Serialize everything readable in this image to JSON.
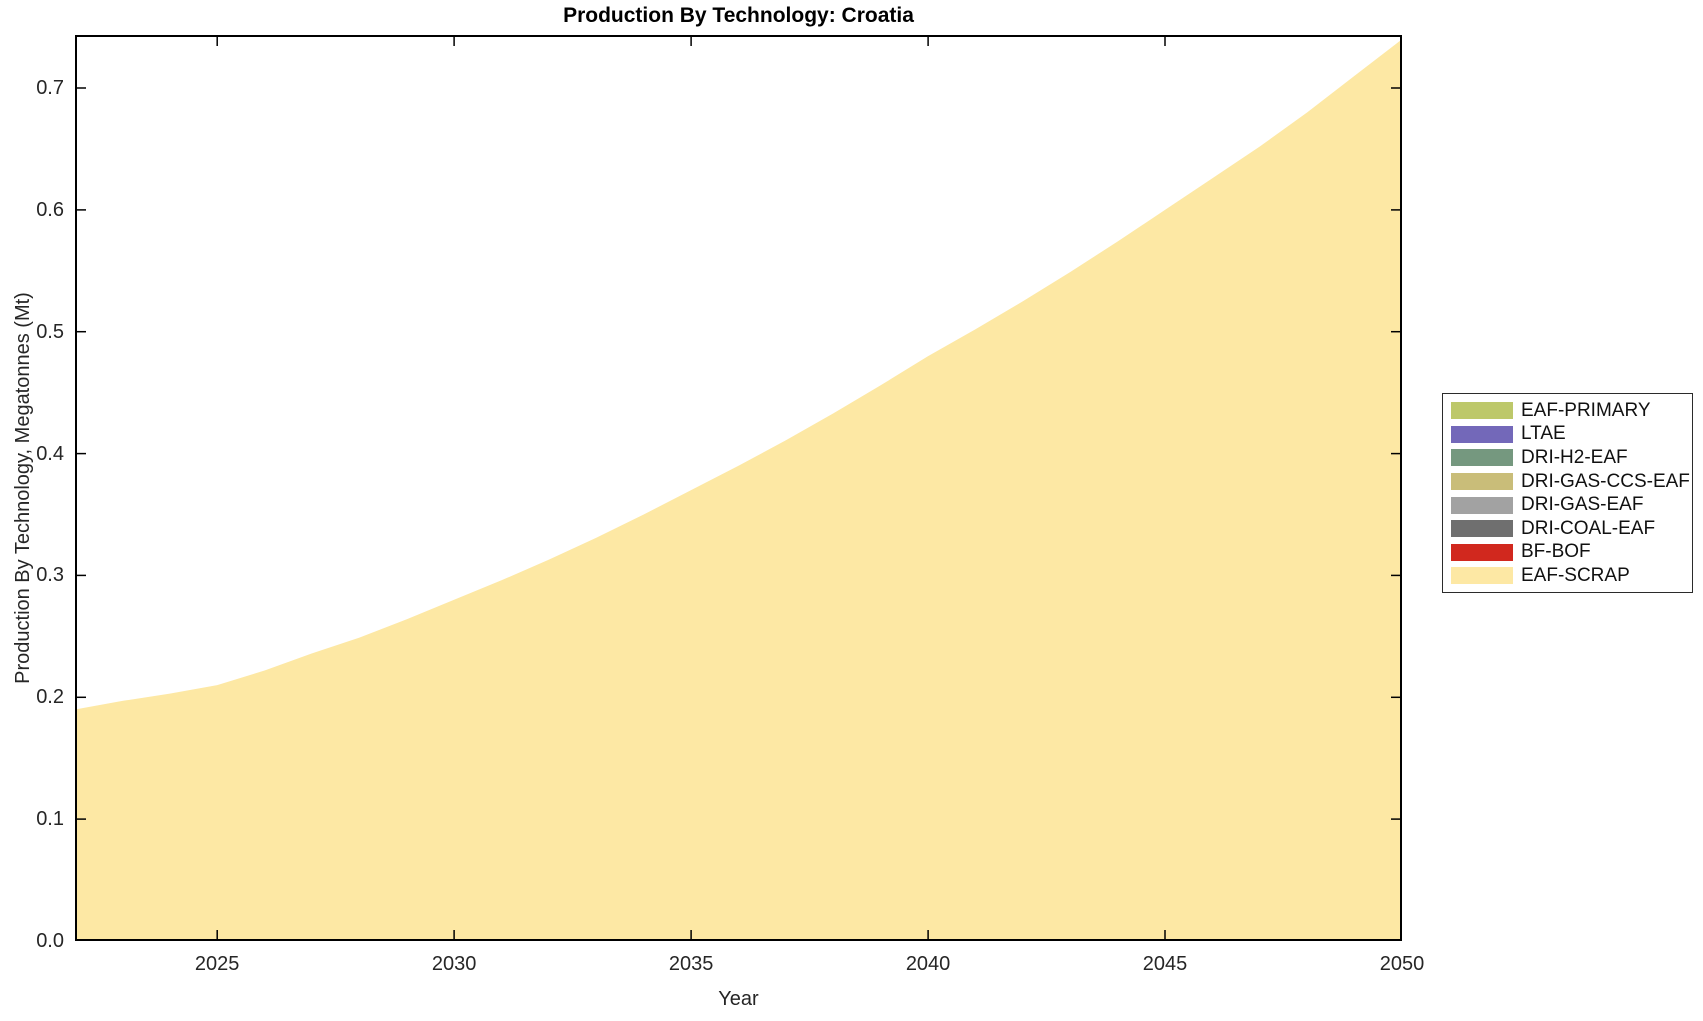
{
  "page": {
    "background": "#ffffff",
    "spine_color": "#000000",
    "tick_label_color": "#262626",
    "legend_border_color": "#2b2b2b"
  },
  "chart_data": {
    "type": "area",
    "stacked": true,
    "title": "Production By Technology: Croatia",
    "xlabel": "Year",
    "ylabel": "Production By Technology, Megatonnes (Mt)",
    "xlim": [
      2022,
      2050
    ],
    "ylim": [
      0,
      0.7435
    ],
    "xticks": [
      2025,
      2030,
      2035,
      2040,
      2045,
      2050
    ],
    "yticks": [
      0.0,
      0.1,
      0.2,
      0.3,
      0.4,
      0.5,
      0.6,
      0.7
    ],
    "grid": false,
    "legend_position": "right-outside",
    "x": [
      2022,
      2023,
      2024,
      2025,
      2026,
      2027,
      2028,
      2029,
      2030,
      2031,
      2032,
      2033,
      2034,
      2035,
      2036,
      2037,
      2038,
      2039,
      2040,
      2041,
      2042,
      2043,
      2044,
      2045,
      2046,
      2047,
      2048,
      2049,
      2050
    ],
    "series": [
      {
        "name": "EAF-PRIMARY",
        "color": "#bdc86a",
        "values": 0
      },
      {
        "name": "LTAE",
        "color": "#7368b9",
        "values": 0
      },
      {
        "name": "DRI-H2-EAF",
        "color": "#75987f",
        "values": 0
      },
      {
        "name": "DRI-GAS-CCS-EAF",
        "color": "#c9bd79",
        "values": 0
      },
      {
        "name": "DRI-GAS-EAF",
        "color": "#a2a2a2",
        "values": 0
      },
      {
        "name": "DRI-COAL-EAF",
        "color": "#6f6f6f",
        "values": 0
      },
      {
        "name": "BF-BOF",
        "color": "#d1281e",
        "values": 0
      },
      {
        "name": "EAF-SCRAP",
        "color": "#fde8a4",
        "values": [
          0.19,
          0.197,
          0.203,
          0.21,
          0.222,
          0.236,
          0.249,
          0.264,
          0.28,
          0.296,
          0.313,
          0.331,
          0.35,
          0.37,
          0.39,
          0.411,
          0.433,
          0.456,
          0.48,
          0.502,
          0.525,
          0.549,
          0.574,
          0.6,
          0.626,
          0.652,
          0.68,
          0.71,
          0.74
        ]
      }
    ]
  }
}
